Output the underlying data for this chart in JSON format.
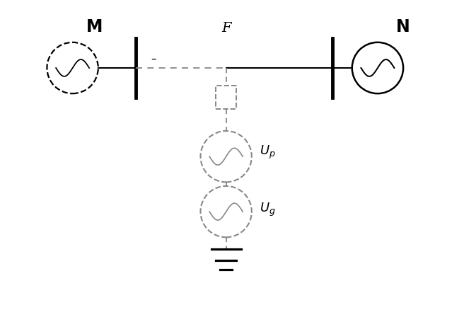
{
  "bg_color": "#ffffff",
  "line_color": "#000000",
  "dashed_color": "#888888",
  "label_M": "M",
  "label_N": "N",
  "label_F": "F",
  "label_Up": "U_p",
  "label_Ug": "U_g",
  "fig_width": 6.56,
  "fig_height": 4.48,
  "dpi": 100,
  "xlim": [
    0,
    10
  ],
  "ylim": [
    0,
    8
  ]
}
